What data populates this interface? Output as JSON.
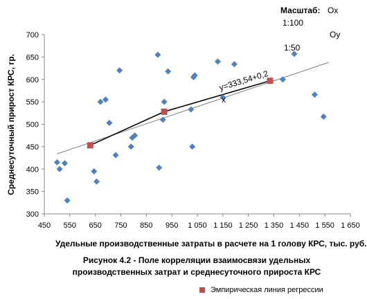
{
  "scale": {
    "title": "Масштаб:",
    "ox_label": "Ox",
    "ox_value": "1:100",
    "oy_label": "Oy",
    "oy_value": "1:50"
  },
  "caption": "Рисунок 4.2 - Поле корреляции взаимосвязи удельных производственных затрат и среднесуточного прироста КРС",
  "chart_data": {
    "type": "scatter",
    "xlabel": "Удельные производственные затраты в расчете на 1 голову КРС, тыс. руб.",
    "ylabel": "Среднесуточный прирост КРС, гр.",
    "xlim": [
      450,
      1650
    ],
    "ylim": [
      300,
      700
    ],
    "x_ticks": [
      450,
      550,
      650,
      750,
      850,
      950,
      1050,
      1150,
      1250,
      1350,
      1450,
      1550,
      1650
    ],
    "x_tick_labels": [
      "450",
      "550",
      "650",
      "750",
      "850",
      "950",
      "1 050",
      "1 150",
      "1 250",
      "1 350",
      "1 450",
      "1 550",
      "1 650"
    ],
    "y_ticks": [
      300,
      350,
      400,
      450,
      500,
      550,
      600,
      650,
      700
    ],
    "y_tick_labels": [
      "300",
      "350",
      "400",
      "450",
      "500",
      "550",
      "600",
      "650",
      "700"
    ],
    "grid": false,
    "series": [
      {
        "marker": "diamond",
        "color": "#4f81bd",
        "points": [
          [
            500,
            415
          ],
          [
            510,
            400
          ],
          [
            530,
            413
          ],
          [
            540,
            330
          ],
          [
            645,
            395
          ],
          [
            655,
            372
          ],
          [
            670,
            550
          ],
          [
            690,
            555
          ],
          [
            705,
            503
          ],
          [
            730,
            431
          ],
          [
            745,
            620
          ],
          [
            790,
            450
          ],
          [
            795,
            470
          ],
          [
            805,
            475
          ],
          [
            895,
            655
          ],
          [
            900,
            403
          ],
          [
            915,
            510
          ],
          [
            920,
            550
          ],
          [
            935,
            618
          ],
          [
            1025,
            533
          ],
          [
            1030,
            450
          ],
          [
            1035,
            605
          ],
          [
            1040,
            609
          ],
          [
            1130,
            640
          ],
          [
            1150,
            560
          ],
          [
            1195,
            634
          ],
          [
            1385,
            600
          ],
          [
            1430,
            657
          ],
          [
            1510,
            566
          ],
          [
            1545,
            517
          ]
        ]
      },
      {
        "name": "Эмпирическая линия регрессии",
        "marker": "square",
        "color": "#c0504d",
        "line_color": "#000000",
        "points": [
          [
            630,
            453
          ],
          [
            920,
            528
          ],
          [
            1335,
            597
          ]
        ]
      }
    ],
    "trendline": {
      "color": "#7f7f7f",
      "from": [
        500,
        434
      ],
      "to": [
        1565,
        638
      ]
    },
    "annotations": [
      "y=333,54+0,2",
      "x"
    ],
    "legend_entries": [
      "Эмпирическая линия регрессии"
    ]
  }
}
